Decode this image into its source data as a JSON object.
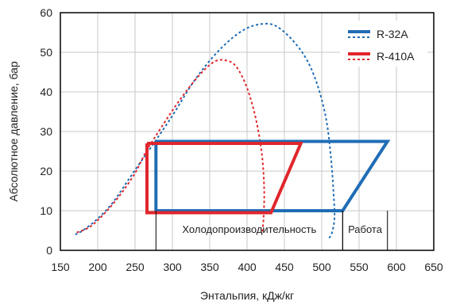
{
  "chart_data": {
    "type": "line",
    "title": "",
    "xlabel": "Энтальпия, кДж/кг",
    "ylabel": "Абсолютное давление, бар",
    "xlim": [
      150,
      650
    ],
    "ylim": [
      0,
      60
    ],
    "xticks": [
      150,
      200,
      250,
      300,
      350,
      400,
      450,
      500,
      550,
      600,
      650
    ],
    "yticks": [
      0,
      10,
      20,
      30,
      40,
      50,
      60
    ],
    "grid": true,
    "legend_position": "top-right",
    "series": [
      {
        "name": "R-32A",
        "color": "#1f6db5",
        "saturation_dome": [
          [
            170,
            4
          ],
          [
            180,
            5
          ],
          [
            200,
            8
          ],
          [
            220,
            12
          ],
          [
            240,
            17.5
          ],
          [
            260,
            23
          ],
          [
            275,
            27
          ],
          [
            300,
            34
          ],
          [
            330,
            43
          ],
          [
            360,
            50
          ],
          [
            390,
            55
          ],
          [
            415,
            57
          ],
          [
            440,
            56.5
          ],
          [
            470,
            51
          ],
          [
            490,
            44
          ],
          [
            505,
            34
          ],
          [
            512,
            24
          ],
          [
            516,
            14
          ],
          [
            517,
            8
          ],
          [
            513,
            4
          ],
          [
            508,
            3
          ]
        ],
        "cycle": [
          [
            278,
            27.5
          ],
          [
            588,
            27.5
          ],
          [
            528,
            10
          ],
          [
            278,
            10
          ],
          [
            278,
            27.5
          ]
        ]
      },
      {
        "name": "R-410A",
        "color": "#e0262b",
        "saturation_dome": [
          [
            172,
            4.5
          ],
          [
            190,
            6
          ],
          [
            210,
            9.5
          ],
          [
            230,
            14
          ],
          [
            250,
            19.5
          ],
          [
            265,
            25
          ],
          [
            285,
            31
          ],
          [
            310,
            38
          ],
          [
            335,
            44
          ],
          [
            355,
            47.5
          ],
          [
            370,
            48
          ],
          [
            385,
            46.5
          ],
          [
            400,
            41
          ],
          [
            412,
            33
          ],
          [
            420,
            24
          ],
          [
            423,
            15
          ],
          [
            422,
            8
          ],
          [
            420,
            4
          ]
        ],
        "cycle": [
          [
            266,
            27
          ],
          [
            472,
            27
          ],
          [
            432,
            9.5
          ],
          [
            266,
            9.5
          ],
          [
            266,
            27
          ]
        ]
      }
    ],
    "annotations": [
      {
        "text": "Холодопроизводительность",
        "x_from": 278,
        "x_to": 528
      },
      {
        "text": "Работа",
        "x_from": 528,
        "x_to": 588
      }
    ]
  }
}
